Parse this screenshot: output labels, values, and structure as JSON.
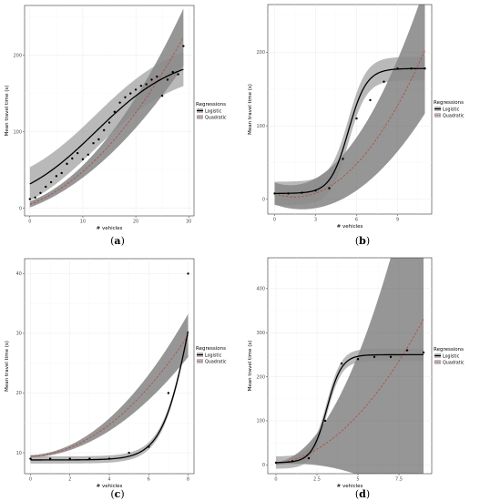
{
  "legend": {
    "title": "Regressions",
    "logistic_label": "Logistic",
    "quadratic_label": "Quadratic"
  },
  "colors": {
    "logistic": "#000000",
    "quadratic": "#c0392b",
    "band_logistic": "#8a8a8a",
    "band_quadratic": "#404040",
    "points": "#000000"
  },
  "chart_data": [
    {
      "type": "line",
      "caption": "a",
      "xlabel": "# vehicles",
      "ylabel": "Mean travel time (s)",
      "xlim": [
        -1,
        31
      ],
      "ylim": [
        -10,
        265
      ],
      "xticks": [
        0,
        10,
        20,
        30
      ],
      "yticks": [
        0,
        100,
        200
      ],
      "logistic": {
        "L": 205,
        "k": 0.13,
        "x0": 12.5,
        "c": -2
      },
      "quadratic": {
        "a": 0.17,
        "b": 2.6,
        "c": 5
      },
      "band_logistic": 22,
      "band_quadratic": [
        4,
        1.5
      ],
      "points": [
        [
          0,
          12
        ],
        [
          1,
          14
        ],
        [
          2,
          20
        ],
        [
          3,
          28
        ],
        [
          4,
          34
        ],
        [
          5,
          42
        ],
        [
          6,
          46
        ],
        [
          7,
          58
        ],
        [
          8,
          65
        ],
        [
          9,
          72
        ],
        [
          10,
          64
        ],
        [
          11,
          70
        ],
        [
          12,
          85
        ],
        [
          13,
          90
        ],
        [
          14,
          102
        ],
        [
          15,
          112
        ],
        [
          16,
          126
        ],
        [
          17,
          138
        ],
        [
          18,
          145
        ],
        [
          19,
          150
        ],
        [
          20,
          155
        ],
        [
          21,
          160
        ],
        [
          22,
          162
        ],
        [
          23,
          168
        ],
        [
          24,
          172
        ],
        [
          25,
          147
        ],
        [
          26,
          168
        ],
        [
          27,
          178
        ],
        [
          28,
          175
        ],
        [
          29,
          212
        ]
      ]
    },
    {
      "type": "line",
      "caption": "b",
      "xlabel": "# vehicles",
      "ylabel": "Mean travel time (s)",
      "xlim": [
        -0.5,
        11.5
      ],
      "ylim": [
        -20,
        265
      ],
      "xticks": [
        0,
        3,
        6,
        9
      ],
      "yticks": [
        0,
        100,
        200
      ],
      "logistic": {
        "L": 170,
        "k": 1.5,
        "x0": 5.4,
        "c": 8
      },
      "quadratic": {
        "a": 2.2,
        "b": -6.5,
        "c": 8
      },
      "band_logistic": 16,
      "band_quadratic": [
        15,
        3.5
      ],
      "points": [
        [
          0,
          8
        ],
        [
          1,
          8
        ],
        [
          2,
          9
        ],
        [
          3,
          12
        ],
        [
          4,
          15
        ],
        [
          5,
          55
        ],
        [
          6,
          110
        ],
        [
          7,
          135
        ],
        [
          8,
          160
        ],
        [
          9,
          178
        ],
        [
          10,
          178
        ],
        [
          11,
          178
        ]
      ]
    },
    {
      "type": "line",
      "caption": "c",
      "xlabel": "# vehicles",
      "ylabel": "Mean travel time (s)",
      "xlim": [
        -0.3,
        8.3
      ],
      "ylim": [
        6.5,
        42.5
      ],
      "xticks": [
        0,
        2,
        4,
        6,
        8
      ],
      "yticks": [
        10,
        20,
        30,
        40
      ],
      "logistic": {
        "L": 48,
        "k": 1.38,
        "x0": 8.15,
        "c": 8.8
      },
      "quadratic": {
        "a": 0.3,
        "b": 0.13,
        "c": 9.4
      },
      "band_logistic": 0.6,
      "band_quadratic": [
        0.2,
        1.15
      ],
      "points": [
        [
          0,
          9
        ],
        [
          1,
          9
        ],
        [
          2,
          9
        ],
        [
          3,
          9
        ],
        [
          4,
          9
        ],
        [
          5,
          10
        ],
        [
          6,
          11
        ],
        [
          7,
          20
        ],
        [
          8,
          40
        ]
      ]
    },
    {
      "type": "line",
      "caption": "d",
      "xlabel": "# vehicles",
      "ylabel": "Mean travel time (s)",
      "xlim": [
        -0.5,
        9.5
      ],
      "ylim": [
        -20,
        470
      ],
      "xticks": [
        0,
        2.5,
        5,
        7.5
      ],
      "yticks": [
        0,
        100,
        200,
        300,
        400
      ],
      "logistic": {
        "L": 245,
        "k": 2.2,
        "x0": 3.1,
        "c": 5
      },
      "quadratic": {
        "a": 3.6,
        "b": 4,
        "c": 3
      },
      "band_logistic": 14,
      "band_quadratic": [
        3,
        13
      ],
      "points": [
        [
          0,
          5
        ],
        [
          1,
          8
        ],
        [
          2,
          15
        ],
        [
          3,
          100
        ],
        [
          4,
          230
        ],
        [
          5,
          240
        ],
        [
          6,
          245
        ],
        [
          7,
          245
        ],
        [
          8,
          260
        ],
        [
          9,
          255
        ]
      ]
    }
  ]
}
